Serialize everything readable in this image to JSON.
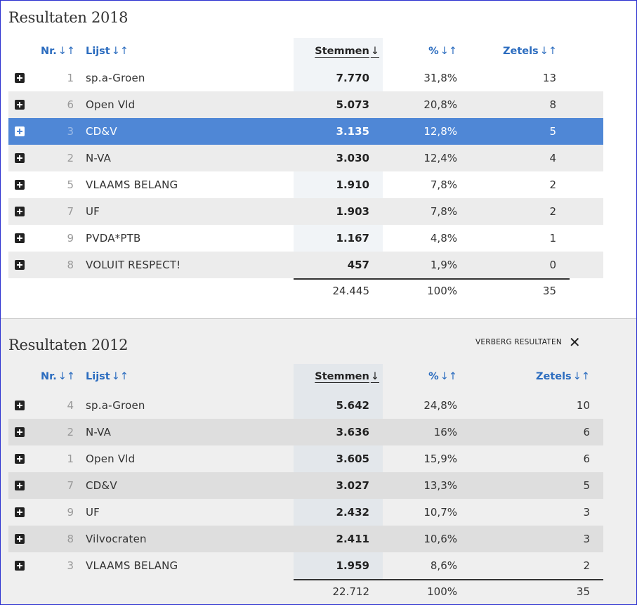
{
  "sections": [
    {
      "title": "Resultaten 2018",
      "headers": {
        "nr": "Nr.",
        "lijst": "Lijst",
        "stemmen": "Stemmen",
        "pct": "%",
        "zetels": "Zetels"
      },
      "sort_arrows": {
        "both": "↓↑",
        "down": "↓"
      },
      "rows": [
        {
          "nr": "1",
          "lijst": "sp.a-Groen",
          "stemmen": "7.770",
          "pct": "31,8%",
          "zetels": "13"
        },
        {
          "nr": "6",
          "lijst": "Open Vld",
          "stemmen": "5.073",
          "pct": "20,8%",
          "zetels": "8"
        },
        {
          "nr": "3",
          "lijst": "CD&V",
          "stemmen": "3.135",
          "pct": "12,8%",
          "zetels": "5"
        },
        {
          "nr": "2",
          "lijst": "N-VA",
          "stemmen": "3.030",
          "pct": "12,4%",
          "zetels": "4"
        },
        {
          "nr": "5",
          "lijst": "VLAAMS BELANG",
          "stemmen": "1.910",
          "pct": "7,8%",
          "zetels": "2"
        },
        {
          "nr": "7",
          "lijst": "UF",
          "stemmen": "1.903",
          "pct": "7,8%",
          "zetels": "2"
        },
        {
          "nr": "9",
          "lijst": "PVDA*PTB",
          "stemmen": "1.167",
          "pct": "4,8%",
          "zetels": "1"
        },
        {
          "nr": "8",
          "lijst": "VOLUIT RESPECT!",
          "stemmen": "457",
          "pct": "1,9%",
          "zetels": "0"
        }
      ],
      "total": {
        "stemmen": "24.445",
        "pct": "100%",
        "zetels": "35"
      }
    },
    {
      "title": "Resultaten 2012",
      "hide_label": "VERBERG RESULTATEN",
      "hide_icon": "✕",
      "headers": {
        "nr": "Nr.",
        "lijst": "Lijst",
        "stemmen": "Stemmen",
        "pct": "%",
        "zetels": "Zetels"
      },
      "sort_arrows": {
        "both": "↓↑",
        "down": "↓"
      },
      "rows": [
        {
          "nr": "4",
          "lijst": "sp.a-Groen",
          "stemmen": "5.642",
          "pct": "24,8%",
          "zetels": "10"
        },
        {
          "nr": "2",
          "lijst": "N-VA",
          "stemmen": "3.636",
          "pct": "16%",
          "zetels": "6"
        },
        {
          "nr": "1",
          "lijst": "Open Vld",
          "stemmen": "3.605",
          "pct": "15,9%",
          "zetels": "6"
        },
        {
          "nr": "7",
          "lijst": "CD&V",
          "stemmen": "3.027",
          "pct": "13,3%",
          "zetels": "5"
        },
        {
          "nr": "9",
          "lijst": "UF",
          "stemmen": "2.432",
          "pct": "10,7%",
          "zetels": "3"
        },
        {
          "nr": "8",
          "lijst": "Vilvocraten",
          "stemmen": "2.411",
          "pct": "10,6%",
          "zetels": "3"
        },
        {
          "nr": "3",
          "lijst": "VLAAMS BELANG",
          "stemmen": "1.959",
          "pct": "8,6%",
          "zetels": "2"
        }
      ],
      "total": {
        "stemmen": "22.712",
        "pct": "100%",
        "zetels": "35"
      }
    }
  ],
  "selected_row": {
    "section": 0,
    "row": 2
  },
  "colors": {
    "accent": "#2b6cbf",
    "selected": "#4f87d6",
    "border": "#2a2fd0"
  }
}
